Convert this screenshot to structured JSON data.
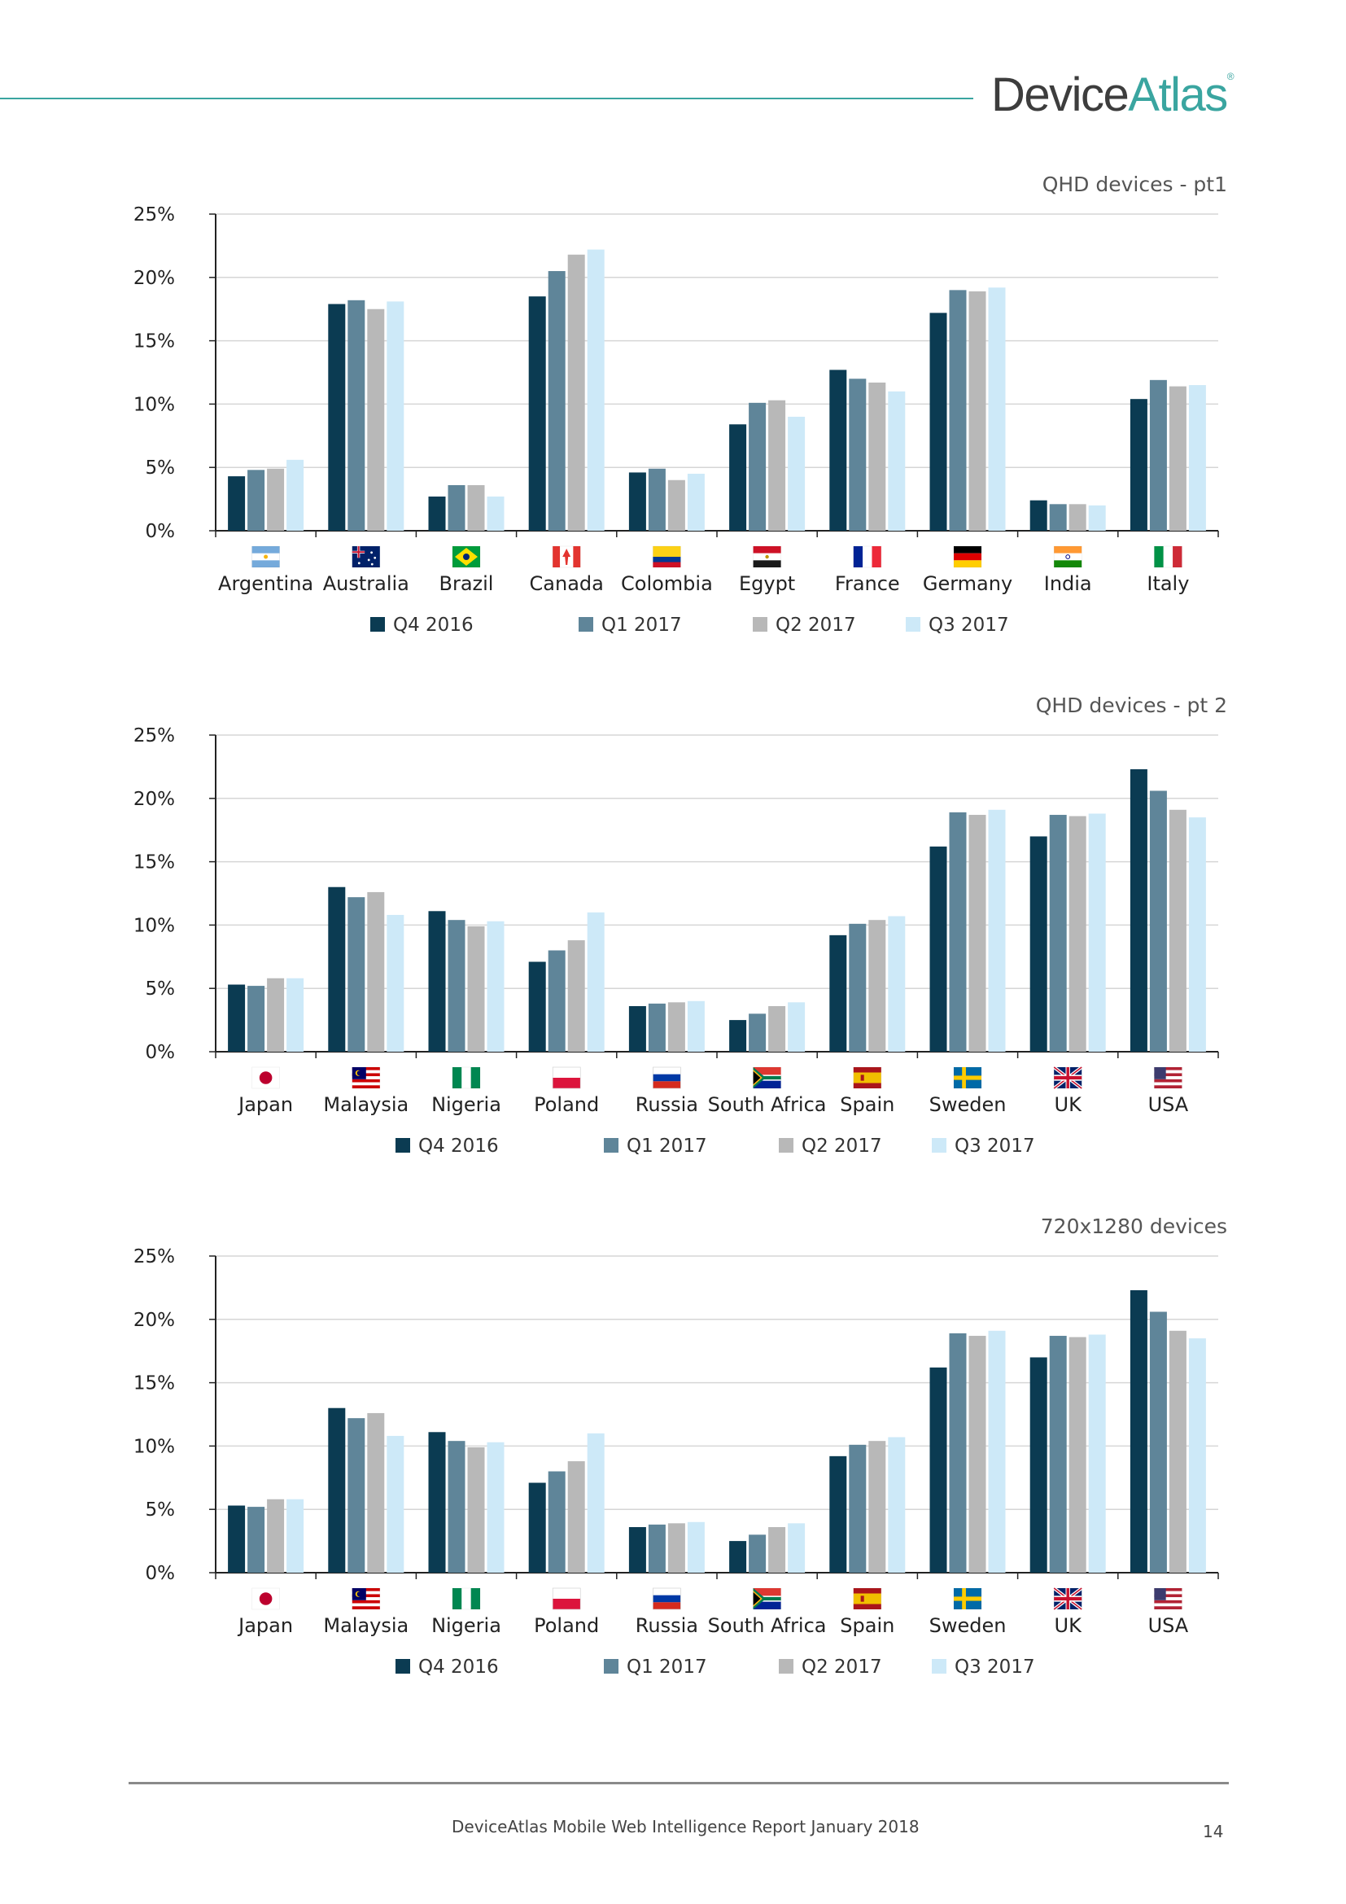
{
  "header": {
    "logo_part1": "Device",
    "logo_part2": "Atlas",
    "logo_mark": "®",
    "accent_color": "#3aa5a0"
  },
  "legend_labels": [
    "Q4 2016",
    "Q1 2017",
    "Q2 2017",
    "Q3 2017"
  ],
  "series_colors": [
    "#0b3b52",
    "#5f8599",
    "#b8b8b8",
    "#cde9f8"
  ],
  "chart_data": [
    {
      "type": "bar",
      "title": "QHD devices - pt1",
      "categories": [
        "Argentina",
        "Australia",
        "Brazil",
        "Canada",
        "Colombia",
        "Egypt",
        "France",
        "Germany",
        "India",
        "Italy"
      ],
      "flags": [
        "argentina-flag-icon",
        "australia-flag-icon",
        "brazil-flag-icon",
        "canada-flag-icon",
        "colombia-flag-icon",
        "egypt-flag-icon",
        "france-flag-icon",
        "germany-flag-icon",
        "india-flag-icon",
        "italy-flag-icon"
      ],
      "y_ticks": [
        "0%",
        "5%",
        "10%",
        "15%",
        "20%",
        "25%"
      ],
      "ylim": [
        0,
        25
      ],
      "grid": true,
      "legend_position": "bottom",
      "series": [
        {
          "name": "Q4 2016",
          "values": [
            4.3,
            17.9,
            2.7,
            18.5,
            4.6,
            8.4,
            12.7,
            17.2,
            2.4,
            10.4
          ]
        },
        {
          "name": "Q1 2017",
          "values": [
            4.8,
            18.2,
            3.6,
            20.5,
            4.9,
            10.1,
            12.0,
            19.0,
            2.1,
            11.9
          ]
        },
        {
          "name": "Q2 2017",
          "values": [
            4.9,
            17.5,
            3.6,
            21.8,
            4.0,
            10.3,
            11.7,
            18.9,
            2.1,
            11.4
          ]
        },
        {
          "name": "Q3 2017",
          "values": [
            5.6,
            18.1,
            2.7,
            22.2,
            4.5,
            9.0,
            11.0,
            19.2,
            2.0,
            11.5
          ]
        }
      ]
    },
    {
      "type": "bar",
      "title": "QHD devices - pt 2",
      "categories": [
        "Japan",
        "Malaysia",
        "Nigeria",
        "Poland",
        "Russia",
        "South Africa",
        "Spain",
        "Sweden",
        "UK",
        "USA"
      ],
      "flags": [
        "japan-flag-icon",
        "malaysia-flag-icon",
        "nigeria-flag-icon",
        "poland-flag-icon",
        "russia-flag-icon",
        "south-africa-flag-icon",
        "spain-flag-icon",
        "sweden-flag-icon",
        "uk-flag-icon",
        "usa-flag-icon"
      ],
      "y_ticks": [
        "0%",
        "5%",
        "10%",
        "15%",
        "20%",
        "25%"
      ],
      "ylim": [
        0,
        25
      ],
      "grid": true,
      "legend_position": "bottom",
      "series": [
        {
          "name": "Q4 2016",
          "values": [
            5.3,
            13.0,
            11.1,
            7.1,
            3.6,
            2.5,
            9.2,
            16.2,
            17.0,
            22.3
          ]
        },
        {
          "name": "Q1 2017",
          "values": [
            5.2,
            12.2,
            10.4,
            8.0,
            3.8,
            3.0,
            10.1,
            18.9,
            18.7,
            20.6
          ]
        },
        {
          "name": "Q2 2017",
          "values": [
            5.8,
            12.6,
            9.9,
            8.8,
            3.9,
            3.6,
            10.4,
            18.7,
            18.6,
            19.1
          ]
        },
        {
          "name": "Q3 2017",
          "values": [
            5.8,
            10.8,
            10.3,
            11.0,
            4.0,
            3.9,
            10.7,
            19.1,
            18.8,
            18.5
          ]
        }
      ]
    },
    {
      "type": "bar",
      "title": "720x1280 devices",
      "categories": [
        "Japan",
        "Malaysia",
        "Nigeria",
        "Poland",
        "Russia",
        "South Africa",
        "Spain",
        "Sweden",
        "UK",
        "USA"
      ],
      "flags": [
        "japan-flag-icon",
        "malaysia-flag-icon",
        "nigeria-flag-icon",
        "poland-flag-icon",
        "russia-flag-icon",
        "south-africa-flag-icon",
        "spain-flag-icon",
        "sweden-flag-icon",
        "uk-flag-icon",
        "usa-flag-icon"
      ],
      "y_ticks": [
        "0%",
        "5%",
        "10%",
        "15%",
        "20%",
        "25%"
      ],
      "ylim": [
        0,
        25
      ],
      "grid": true,
      "legend_position": "bottom",
      "series": [
        {
          "name": "Q4 2016",
          "values": [
            5.3,
            13.0,
            11.1,
            7.1,
            3.6,
            2.5,
            9.2,
            16.2,
            17.0,
            22.3
          ]
        },
        {
          "name": "Q1 2017",
          "values": [
            5.2,
            12.2,
            10.4,
            8.0,
            3.8,
            3.0,
            10.1,
            18.9,
            18.7,
            20.6
          ]
        },
        {
          "name": "Q2 2017",
          "values": [
            5.8,
            12.6,
            9.9,
            8.8,
            3.9,
            3.6,
            10.4,
            18.7,
            18.6,
            19.1
          ]
        },
        {
          "name": "Q3 2017",
          "values": [
            5.8,
            10.8,
            10.3,
            11.0,
            4.0,
            3.9,
            10.7,
            19.1,
            18.8,
            18.5
          ]
        }
      ]
    }
  ],
  "footer": {
    "text": "DeviceAtlas Mobile Web Intelligence Report January 2018",
    "page_number": "14"
  }
}
